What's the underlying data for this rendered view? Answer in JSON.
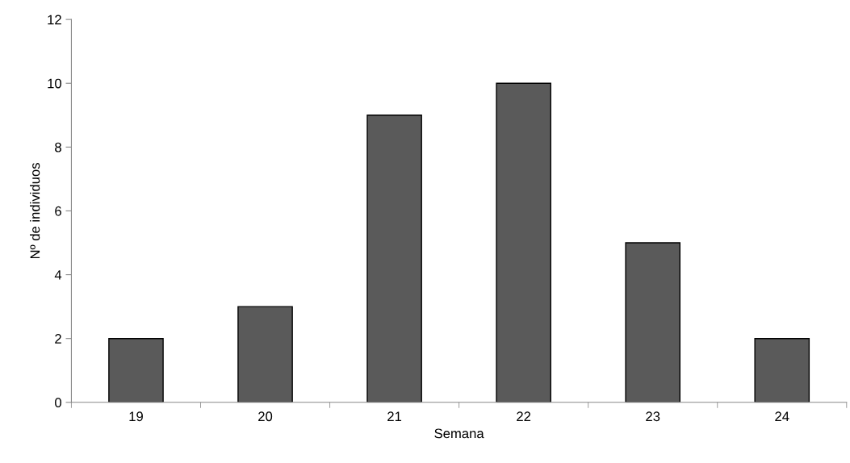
{
  "chart_data": {
    "type": "bar",
    "xlabel": "Semana",
    "ylabel": "Nº de individuos",
    "categories": [
      "19",
      "20",
      "21",
      "22",
      "23",
      "24"
    ],
    "values": [
      2,
      3,
      9,
      10,
      5,
      2
    ],
    "color": "#5a5a5a",
    "ylim": [
      0,
      12
    ],
    "yticks": [
      0,
      2,
      4,
      6,
      8,
      10,
      12
    ],
    "grid": false,
    "legend": false
  }
}
